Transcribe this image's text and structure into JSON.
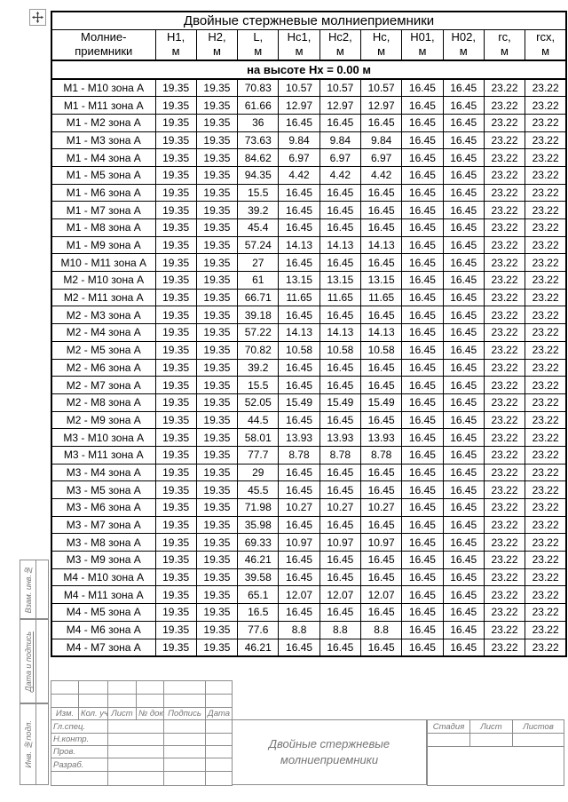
{
  "main_table": {
    "title": "Двойные стержневые молниеприемники",
    "row_header": {
      "line1": "Молние-",
      "line2": "приемники"
    },
    "columns": [
      {
        "t": "H1,",
        "u": "м"
      },
      {
        "t": "H2,",
        "u": "м"
      },
      {
        "t": "L,",
        "u": "м"
      },
      {
        "t": "Hc1,",
        "u": "м"
      },
      {
        "t": "Hc2,",
        "u": "м"
      },
      {
        "t": "Hc,",
        "u": "м"
      },
      {
        "t": "H01,",
        "u": "м"
      },
      {
        "t": "H02,",
        "u": "м"
      },
      {
        "t": "rc,",
        "u": "м"
      },
      {
        "t": "rcx,",
        "u": "м"
      }
    ],
    "subheader": "на высоте Hx = 0.00 м",
    "rows": [
      {
        "name": "M1 - M10 зона А",
        "values": [
          "19.35",
          "19.35",
          "70.83",
          "10.57",
          "10.57",
          "10.57",
          "16.45",
          "16.45",
          "23.22",
          "23.22"
        ]
      },
      {
        "name": "M1 - M11 зона А",
        "values": [
          "19.35",
          "19.35",
          "61.66",
          "12.97",
          "12.97",
          "12.97",
          "16.45",
          "16.45",
          "23.22",
          "23.22"
        ]
      },
      {
        "name": "M1 - M2 зона А",
        "values": [
          "19.35",
          "19.35",
          "36",
          "16.45",
          "16.45",
          "16.45",
          "16.45",
          "16.45",
          "23.22",
          "23.22"
        ]
      },
      {
        "name": "M1 - M3 зона А",
        "values": [
          "19.35",
          "19.35",
          "73.63",
          "9.84",
          "9.84",
          "9.84",
          "16.45",
          "16.45",
          "23.22",
          "23.22"
        ]
      },
      {
        "name": "M1 - M4 зона А",
        "values": [
          "19.35",
          "19.35",
          "84.62",
          "6.97",
          "6.97",
          "6.97",
          "16.45",
          "16.45",
          "23.22",
          "23.22"
        ]
      },
      {
        "name": "M1 - M5 зона А",
        "values": [
          "19.35",
          "19.35",
          "94.35",
          "4.42",
          "4.42",
          "4.42",
          "16.45",
          "16.45",
          "23.22",
          "23.22"
        ]
      },
      {
        "name": "M1 - M6 зона А",
        "values": [
          "19.35",
          "19.35",
          "15.5",
          "16.45",
          "16.45",
          "16.45",
          "16.45",
          "16.45",
          "23.22",
          "23.22"
        ]
      },
      {
        "name": "M1 - M7 зона А",
        "values": [
          "19.35",
          "19.35",
          "39.2",
          "16.45",
          "16.45",
          "16.45",
          "16.45",
          "16.45",
          "23.22",
          "23.22"
        ]
      },
      {
        "name": "M1 - M8 зона А",
        "values": [
          "19.35",
          "19.35",
          "45.4",
          "16.45",
          "16.45",
          "16.45",
          "16.45",
          "16.45",
          "23.22",
          "23.22"
        ]
      },
      {
        "name": "M1 - M9 зона А",
        "values": [
          "19.35",
          "19.35",
          "57.24",
          "14.13",
          "14.13",
          "14.13",
          "16.45",
          "16.45",
          "23.22",
          "23.22"
        ]
      },
      {
        "name": "M10 - M11 зона А",
        "values": [
          "19.35",
          "19.35",
          "27",
          "16.45",
          "16.45",
          "16.45",
          "16.45",
          "16.45",
          "23.22",
          "23.22"
        ]
      },
      {
        "name": "M2 - M10 зона А",
        "values": [
          "19.35",
          "19.35",
          "61",
          "13.15",
          "13.15",
          "13.15",
          "16.45",
          "16.45",
          "23.22",
          "23.22"
        ]
      },
      {
        "name": "M2 - M11 зона А",
        "values": [
          "19.35",
          "19.35",
          "66.71",
          "11.65",
          "11.65",
          "11.65",
          "16.45",
          "16.45",
          "23.22",
          "23.22"
        ]
      },
      {
        "name": "M2 - M3 зона А",
        "values": [
          "19.35",
          "19.35",
          "39.18",
          "16.45",
          "16.45",
          "16.45",
          "16.45",
          "16.45",
          "23.22",
          "23.22"
        ]
      },
      {
        "name": "M2 - M4 зона А",
        "values": [
          "19.35",
          "19.35",
          "57.22",
          "14.13",
          "14.13",
          "14.13",
          "16.45",
          "16.45",
          "23.22",
          "23.22"
        ]
      },
      {
        "name": "M2 - M5 зона А",
        "values": [
          "19.35",
          "19.35",
          "70.82",
          "10.58",
          "10.58",
          "10.58",
          "16.45",
          "16.45",
          "23.22",
          "23.22"
        ]
      },
      {
        "name": "M2 - M6 зона А",
        "values": [
          "19.35",
          "19.35",
          "39.2",
          "16.45",
          "16.45",
          "16.45",
          "16.45",
          "16.45",
          "23.22",
          "23.22"
        ]
      },
      {
        "name": "M2 - M7 зона А",
        "values": [
          "19.35",
          "19.35",
          "15.5",
          "16.45",
          "16.45",
          "16.45",
          "16.45",
          "16.45",
          "23.22",
          "23.22"
        ]
      },
      {
        "name": "M2 - M8 зона А",
        "values": [
          "19.35",
          "19.35",
          "52.05",
          "15.49",
          "15.49",
          "15.49",
          "16.45",
          "16.45",
          "23.22",
          "23.22"
        ]
      },
      {
        "name": "M2 - M9 зона А",
        "values": [
          "19.35",
          "19.35",
          "44.5",
          "16.45",
          "16.45",
          "16.45",
          "16.45",
          "16.45",
          "23.22",
          "23.22"
        ]
      },
      {
        "name": "M3 - M10 зона А",
        "values": [
          "19.35",
          "19.35",
          "58.01",
          "13.93",
          "13.93",
          "13.93",
          "16.45",
          "16.45",
          "23.22",
          "23.22"
        ]
      },
      {
        "name": "M3 - M11 зона А",
        "values": [
          "19.35",
          "19.35",
          "77.7",
          "8.78",
          "8.78",
          "8.78",
          "16.45",
          "16.45",
          "23.22",
          "23.22"
        ]
      },
      {
        "name": "M3 - M4 зона А",
        "values": [
          "19.35",
          "19.35",
          "29",
          "16.45",
          "16.45",
          "16.45",
          "16.45",
          "16.45",
          "23.22",
          "23.22"
        ]
      },
      {
        "name": "M3 - M5 зона А",
        "values": [
          "19.35",
          "19.35",
          "45.5",
          "16.45",
          "16.45",
          "16.45",
          "16.45",
          "16.45",
          "23.22",
          "23.22"
        ]
      },
      {
        "name": "M3 - M6 зона А",
        "values": [
          "19.35",
          "19.35",
          "71.98",
          "10.27",
          "10.27",
          "10.27",
          "16.45",
          "16.45",
          "23.22",
          "23.22"
        ]
      },
      {
        "name": "M3 - M7 зона А",
        "values": [
          "19.35",
          "19.35",
          "35.98",
          "16.45",
          "16.45",
          "16.45",
          "16.45",
          "16.45",
          "23.22",
          "23.22"
        ]
      },
      {
        "name": "M3 - M8 зона А",
        "values": [
          "19.35",
          "19.35",
          "69.33",
          "10.97",
          "10.97",
          "10.97",
          "16.45",
          "16.45",
          "23.22",
          "23.22"
        ]
      },
      {
        "name": "M3 - M9 зона А",
        "values": [
          "19.35",
          "19.35",
          "46.21",
          "16.45",
          "16.45",
          "16.45",
          "16.45",
          "16.45",
          "23.22",
          "23.22"
        ]
      },
      {
        "name": "M4 - M10 зона А",
        "values": [
          "19.35",
          "19.35",
          "39.58",
          "16.45",
          "16.45",
          "16.45",
          "16.45",
          "16.45",
          "23.22",
          "23.22"
        ]
      },
      {
        "name": "M4 - M11 зона А",
        "values": [
          "19.35",
          "19.35",
          "65.1",
          "12.07",
          "12.07",
          "12.07",
          "16.45",
          "16.45",
          "23.22",
          "23.22"
        ]
      },
      {
        "name": "M4 - M5 зона А",
        "values": [
          "19.35",
          "19.35",
          "16.5",
          "16.45",
          "16.45",
          "16.45",
          "16.45",
          "16.45",
          "23.22",
          "23.22"
        ]
      },
      {
        "name": "M4 - M6 зона А",
        "values": [
          "19.35",
          "19.35",
          "77.6",
          "8.8",
          "8.8",
          "8.8",
          "16.45",
          "16.45",
          "23.22",
          "23.22"
        ]
      },
      {
        "name": "M4 - M7 зона А",
        "values": [
          "19.35",
          "19.35",
          "46.21",
          "16.45",
          "16.45",
          "16.45",
          "16.45",
          "16.45",
          "23.22",
          "23.22"
        ]
      }
    ]
  },
  "title_block": {
    "revision_headers": [
      "Изм.",
      "Кол. уч.",
      "Лист",
      "№ док.",
      "Подпись",
      "Дата"
    ],
    "roles": [
      "Гл.спец.",
      "Н.контр.",
      "Пров.",
      "Разраб."
    ],
    "doc_name": {
      "line1": "Двойные стержневые",
      "line2": "молниеприемники"
    },
    "stage_headers": [
      "Стадия",
      "Лист",
      "Листов"
    ]
  },
  "side_strip": {
    "boxes": [
      "Взам. инв.№",
      "Дата и подпись",
      "Инв. №подл."
    ]
  },
  "colors": {
    "table_line": "#000000",
    "stamp_line": "#8c8c8c",
    "stamp_text": "#757575"
  }
}
